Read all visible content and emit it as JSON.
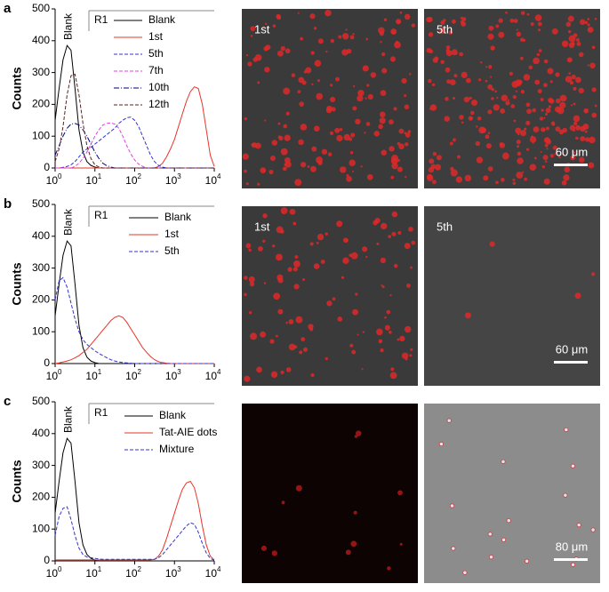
{
  "chart_data": [
    {
      "type": "line",
      "panel": "a",
      "ylabel": "Counts",
      "annotations": [
        "Blank",
        "R1"
      ],
      "xscale": "log",
      "xlim": [
        1,
        10000
      ],
      "ylim": [
        0,
        500
      ],
      "xticks": [
        {
          "value": 1,
          "label": "10",
          "sup": "0"
        },
        {
          "value": 10,
          "label": "10",
          "sup": "1"
        },
        {
          "value": 100,
          "label": "10",
          "sup": "2"
        },
        {
          "value": 1000,
          "label": "10",
          "sup": "3"
        },
        {
          "value": 10000,
          "label": "10",
          "sup": "4"
        }
      ],
      "yticks": [
        0,
        100,
        200,
        300,
        400,
        500
      ],
      "x": [
        1,
        1.26,
        1.58,
        2,
        2.51,
        3.16,
        3.98,
        5.01,
        6.31,
        7.94,
        10,
        12.6,
        15.8,
        20,
        25.1,
        31.6,
        39.8,
        50.1,
        63.1,
        79.4,
        100,
        126,
        158,
        200,
        251,
        316,
        398,
        501,
        631,
        794,
        1000,
        1260,
        1580,
        2000,
        2510,
        3160,
        3980,
        5010,
        6310,
        7940,
        10000
      ],
      "series": [
        {
          "name": "Blank",
          "color": "#000000",
          "dash": "",
          "values": [
            150,
            250,
            340,
            385,
            370,
            250,
            120,
            50,
            20,
            8,
            3,
            0,
            0,
            0,
            0,
            0,
            0,
            0,
            0,
            0,
            0,
            0,
            0,
            0,
            0,
            0,
            0,
            0,
            0,
            0,
            0,
            0,
            0,
            0,
            0,
            0,
            0,
            0,
            0,
            0,
            0
          ]
        },
        {
          "name": "1st",
          "color": "#e8342a",
          "dash": "",
          "values": [
            0,
            0,
            0,
            0,
            0,
            0,
            0,
            0,
            0,
            0,
            0,
            0,
            0,
            0,
            0,
            0,
            0,
            0,
            0,
            0,
            0,
            0,
            0,
            0,
            0,
            0,
            5,
            15,
            35,
            60,
            90,
            130,
            170,
            210,
            240,
            255,
            250,
            200,
            120,
            40,
            5
          ]
        },
        {
          "name": "5th",
          "color": "#3333cc",
          "dash": "4,2",
          "values": [
            0,
            0,
            2,
            5,
            10,
            20,
            35,
            50,
            60,
            65,
            75,
            85,
            95,
            105,
            115,
            125,
            140,
            150,
            158,
            160,
            150,
            130,
            100,
            70,
            40,
            20,
            8,
            3,
            0,
            0,
            0,
            0,
            0,
            0,
            0,
            0,
            0,
            0,
            0,
            0,
            0
          ]
        },
        {
          "name": "7th",
          "color": "#e040e0",
          "dash": "4,2",
          "values": [
            0,
            0,
            0,
            0,
            0,
            5,
            15,
            30,
            50,
            75,
            100,
            120,
            135,
            140,
            142,
            138,
            125,
            100,
            70,
            45,
            25,
            12,
            5,
            0,
            0,
            0,
            0,
            0,
            0,
            0,
            0,
            0,
            0,
            0,
            0,
            0,
            0,
            0,
            0,
            0,
            0
          ]
        },
        {
          "name": "10th",
          "color": "#000080",
          "dash": "6,2,1,2",
          "values": [
            40,
            70,
            100,
            125,
            138,
            140,
            135,
            120,
            100,
            75,
            50,
            30,
            15,
            7,
            3,
            0,
            0,
            0,
            0,
            0,
            0,
            0,
            0,
            0,
            0,
            0,
            0,
            0,
            0,
            0,
            0,
            0,
            0,
            0,
            0,
            0,
            0,
            0,
            0,
            0,
            0
          ]
        },
        {
          "name": "12th",
          "color": "#5a2020",
          "dash": "4,2",
          "values": [
            20,
            60,
            130,
            230,
            290,
            295,
            230,
            140,
            70,
            30,
            10,
            3,
            0,
            0,
            0,
            0,
            0,
            0,
            0,
            0,
            0,
            0,
            0,
            0,
            0,
            0,
            0,
            0,
            0,
            0,
            0,
            0,
            0,
            0,
            0,
            0,
            0,
            0,
            0,
            0,
            0
          ]
        }
      ]
    },
    {
      "type": "line",
      "panel": "b",
      "ylabel": "Counts",
      "annotations": [
        "Blank",
        "R1"
      ],
      "xscale": "log",
      "xlim": [
        1,
        10000
      ],
      "ylim": [
        0,
        500
      ],
      "xticks": [
        {
          "value": 1,
          "label": "10",
          "sup": "0"
        },
        {
          "value": 10,
          "label": "10",
          "sup": "1"
        },
        {
          "value": 100,
          "label": "10",
          "sup": "2"
        },
        {
          "value": 1000,
          "label": "10",
          "sup": "3"
        },
        {
          "value": 10000,
          "label": "10",
          "sup": "4"
        }
      ],
      "yticks": [
        0,
        100,
        200,
        300,
        400,
        500
      ],
      "x": [
        1,
        1.26,
        1.58,
        2,
        2.51,
        3.16,
        3.98,
        5.01,
        6.31,
        7.94,
        10,
        12.6,
        15.8,
        20,
        25.1,
        31.6,
        39.8,
        50.1,
        63.1,
        79.4,
        100,
        126,
        158,
        200,
        251,
        316,
        398,
        501,
        631,
        794,
        1000,
        1260,
        1580,
        2000,
        2510,
        3160,
        3980,
        5010,
        6310,
        7940,
        10000
      ],
      "series": [
        {
          "name": "Blank",
          "color": "#000000",
          "dash": "",
          "values": [
            150,
            250,
            340,
            385,
            370,
            250,
            120,
            50,
            20,
            8,
            3,
            0,
            0,
            0,
            0,
            0,
            0,
            0,
            0,
            0,
            0,
            0,
            0,
            0,
            0,
            0,
            0,
            0,
            0,
            0,
            0,
            0,
            0,
            0,
            0,
            0,
            0,
            0,
            0,
            0,
            0
          ]
        },
        {
          "name": "1st",
          "color": "#e8342a",
          "dash": "",
          "values": [
            0,
            2,
            5,
            8,
            12,
            18,
            25,
            35,
            45,
            60,
            75,
            90,
            105,
            120,
            135,
            145,
            150,
            145,
            130,
            110,
            90,
            70,
            50,
            35,
            22,
            12,
            6,
            3,
            1,
            0,
            0,
            0,
            0,
            0,
            0,
            0,
            0,
            0,
            0,
            0,
            0
          ]
        },
        {
          "name": "5th",
          "color": "#3333cc",
          "dash": "4,2",
          "values": [
            200,
            260,
            270,
            240,
            190,
            140,
            100,
            75,
            60,
            50,
            40,
            32,
            25,
            18,
            12,
            8,
            5,
            3,
            2,
            1,
            0,
            0,
            0,
            0,
            0,
            0,
            0,
            0,
            0,
            0,
            0,
            0,
            0,
            0,
            0,
            0,
            0,
            0,
            0,
            0,
            0
          ]
        }
      ]
    },
    {
      "type": "line",
      "panel": "c",
      "ylabel": "Counts",
      "annotations": [
        "Blank",
        "R1"
      ],
      "xscale": "log",
      "xlim": [
        1,
        10000
      ],
      "ylim": [
        0,
        500
      ],
      "xticks": [
        {
          "value": 1,
          "label": "10",
          "sup": "0"
        },
        {
          "value": 10,
          "label": "10",
          "sup": "1"
        },
        {
          "value": 100,
          "label": "10",
          "sup": "2"
        },
        {
          "value": 1000,
          "label": "10",
          "sup": "3"
        },
        {
          "value": 10000,
          "label": "10",
          "sup": "4"
        }
      ],
      "yticks": [
        0,
        100,
        200,
        300,
        400,
        500
      ],
      "x": [
        1,
        1.26,
        1.58,
        2,
        2.51,
        3.16,
        3.98,
        5.01,
        6.31,
        7.94,
        10,
        12.6,
        15.8,
        20,
        25.1,
        31.6,
        39.8,
        50.1,
        63.1,
        79.4,
        100,
        126,
        158,
        200,
        251,
        316,
        398,
        501,
        631,
        794,
        1000,
        1260,
        1580,
        2000,
        2510,
        3160,
        3980,
        5010,
        6310,
        7940,
        10000
      ],
      "series": [
        {
          "name": "Blank",
          "color": "#000000",
          "dash": "",
          "values": [
            150,
            250,
            340,
            385,
            370,
            250,
            120,
            50,
            20,
            8,
            3,
            0,
            0,
            0,
            0,
            0,
            0,
            0,
            0,
            0,
            0,
            0,
            0,
            0,
            0,
            0,
            0,
            0,
            0,
            0,
            0,
            0,
            0,
            0,
            0,
            0,
            0,
            0,
            0,
            0,
            0
          ]
        },
        {
          "name": "Tat-AIE dots",
          "color": "#e8342a",
          "dash": "",
          "values": [
            3,
            3,
            3,
            3,
            3,
            3,
            3,
            3,
            3,
            3,
            3,
            3,
            3,
            3,
            3,
            3,
            3,
            3,
            3,
            3,
            3,
            3,
            3,
            3,
            3,
            5,
            15,
            35,
            70,
            110,
            150,
            190,
            225,
            245,
            250,
            230,
            180,
            110,
            50,
            15,
            3
          ]
        },
        {
          "name": "Mixture",
          "color": "#3333cc",
          "dash": "4,2",
          "values": [
            80,
            140,
            165,
            170,
            130,
            80,
            40,
            20,
            12,
            10,
            8,
            6,
            5,
            5,
            5,
            5,
            5,
            5,
            5,
            5,
            5,
            5,
            5,
            5,
            5,
            5,
            10,
            20,
            35,
            50,
            65,
            80,
            95,
            110,
            120,
            115,
            90,
            55,
            25,
            8,
            2
          ]
        }
      ]
    }
  ],
  "images": [
    {
      "tiles": [
        {
          "label": "1st"
        },
        {
          "label": "5th",
          "scalebar": "60 μm"
        }
      ]
    },
    {
      "tiles": [
        {
          "label": "1st"
        },
        {
          "label": "5th",
          "scalebar": "60 μm"
        }
      ]
    },
    {
      "tiles": [
        {},
        {
          "scalebar": "80 μm"
        }
      ]
    }
  ]
}
